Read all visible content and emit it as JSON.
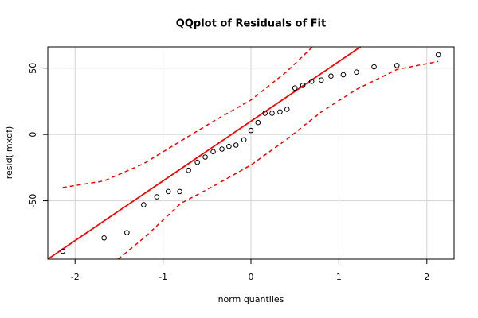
{
  "chart_data": {
    "type": "scatter",
    "title": "QQplot of Residuals of Fit",
    "x_label": "norm quantiles",
    "y_label": "resid(lmxdf)",
    "x": [
      -2.14,
      -1.67,
      -1.41,
      -1.22,
      -1.07,
      -0.94,
      -0.81,
      -0.71,
      -0.61,
      -0.52,
      -0.43,
      -0.33,
      -0.25,
      -0.17,
      -0.08,
      0,
      0.08,
      0.16,
      0.24,
      0.33,
      0.41,
      0.5,
      0.59,
      0.69,
      0.8,
      0.91,
      1.05,
      1.2,
      1.4,
      1.66,
      2.13
    ],
    "values": [
      -88,
      -78,
      -74,
      -53,
      -47,
      -43,
      -43,
      -27,
      -21,
      -17,
      -13,
      -11,
      -9,
      -8,
      -4,
      3,
      9,
      16,
      16,
      17,
      19,
      35,
      37,
      40,
      41,
      44,
      45,
      47,
      51,
      52,
      60
    ],
    "color": "#000000",
    "reference_line": {
      "intercept": 10,
      "slope": 45,
      "color": "#ff0000"
    },
    "bands": [
      {
        "x": [
          -2.14,
          -1.67,
          -1.22,
          -0.8,
          -0.4,
          0,
          0.4,
          0.7
        ],
        "values": [
          -40,
          -35,
          -22,
          -5,
          11,
          26,
          47,
          66
        ],
        "color": "#ff0000"
      },
      {
        "x": [
          -1.51,
          -1.2,
          -0.8,
          -0.4,
          0,
          0.4,
          0.8,
          1.2,
          1.66,
          2.13
        ],
        "values": [
          -94,
          -77,
          -52,
          -38,
          -23,
          -4,
          17,
          34,
          49,
          55
        ],
        "color": "#ff0000"
      }
    ],
    "xlim": [
      -2.31,
      2.31
    ],
    "ylim": [
      -94,
      66
    ],
    "xticks": [
      -2,
      -1,
      0,
      1,
      2
    ],
    "yticks": [
      -50,
      0,
      50
    ],
    "grid": true
  }
}
